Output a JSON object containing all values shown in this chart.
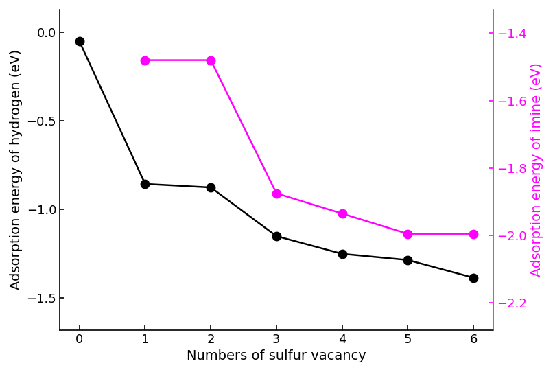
{
  "x": [
    0,
    1,
    2,
    3,
    4,
    5,
    6
  ],
  "black_y": [
    -0.05,
    -0.855,
    -0.875,
    -1.15,
    -1.25,
    -1.285,
    -1.385
  ],
  "magenta_y": [
    null,
    -1.48,
    -1.48,
    -1.875,
    -1.935,
    -1.995,
    -1.995
  ],
  "black_color": "#000000",
  "magenta_color": "#FF00FF",
  "left_ylabel": "Adsorption energy of hydrogen (eV)",
  "right_ylabel": "Adsorption energy of imine (eV)",
  "xlabel": "Numbers of sulfur vacancy",
  "left_ylim": [
    -1.68,
    0.13
  ],
  "right_ylim": [
    -2.28,
    -1.33
  ],
  "left_yticks": [
    0.0,
    -0.5,
    -1.0,
    -1.5
  ],
  "right_yticks": [
    -1.4,
    -1.6,
    -1.8,
    -2.0,
    -2.2
  ],
  "xticks": [
    0,
    1,
    2,
    3,
    4,
    5,
    6
  ],
  "marker_size": 9,
  "linewidth": 1.8,
  "ylabel_fontsize": 14,
  "xlabel_fontsize": 14,
  "tick_fontsize": 13
}
